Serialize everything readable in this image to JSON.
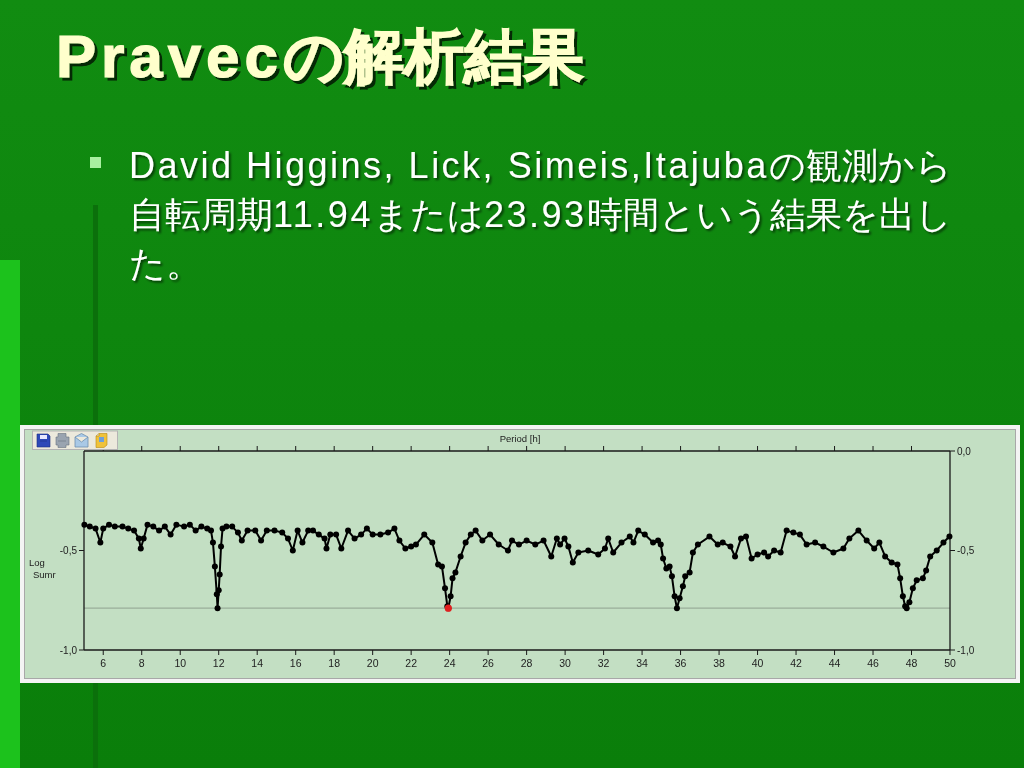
{
  "chart_data": {
    "type": "line",
    "title": "Pravecの解析結果",
    "subtitle": "David Higgins, Lick, Simeis,Itajubaの観測から自転周期11.94または23.93時間という結果を出した。",
    "ylabel": "Log Sumr",
    "xlabel": "Period [h]",
    "xlim": [
      5,
      50
    ],
    "xticks": [
      6,
      8,
      10,
      12,
      14,
      16,
      18,
      20,
      22,
      24,
      26,
      28,
      30,
      32,
      34,
      36,
      38,
      40,
      42,
      44,
      46,
      48,
      50
    ],
    "ylim": [
      -1,
      0
    ],
    "yticks": [
      {
        "value": -1,
        "label": "-1,0"
      },
      {
        "value": -0.5,
        "label": "-0,5"
      }
    ],
    "y2lim": [
      -1,
      0
    ],
    "y2ticks": [
      {
        "value": 0,
        "label": "0,0"
      },
      {
        "value": -0.5,
        "label": "-0,5"
      },
      {
        "value": -1,
        "label": "-1,0"
      }
    ],
    "marker": "circle",
    "ref_lines": [
      {
        "axis": "y",
        "value": -0.79,
        "color": "#9aae9a"
      }
    ],
    "series": [
      {
        "color": "#000000",
        "x": [
          5.02,
          5.3,
          5.6,
          5.85,
          6.0,
          6.3,
          6.6,
          7.0,
          7.3,
          7.6,
          7.85,
          7.95,
          8.1,
          8.3,
          8.6,
          8.9,
          9.2,
          9.5,
          9.8,
          10.2,
          10.5,
          10.8,
          11.1,
          11.4,
          11.6,
          11.7,
          11.8,
          11.9,
          11.94,
          12.0,
          12.05,
          12.12,
          12.2,
          12.4,
          12.7,
          13.0,
          13.2,
          13.5,
          13.9,
          14.2,
          14.5,
          14.9,
          15.3,
          15.6,
          15.85,
          16.1,
          16.35,
          16.65,
          16.9,
          17.2,
          17.5,
          17.6,
          17.8,
          18.1,
          18.37,
          18.72,
          19.06,
          19.4,
          19.7,
          20.0,
          20.4,
          20.8,
          21.13,
          21.39,
          21.7,
          22.0,
          22.25,
          22.68,
          23.1,
          23.4,
          23.6,
          23.76,
          23.88,
          23.93,
          24.05,
          24.15,
          24.3,
          24.57,
          24.83,
          25.1,
          25.35,
          25.7,
          26.1,
          26.55,
          27.03,
          27.24,
          27.6,
          28.0,
          28.45,
          28.88,
          29.28,
          29.57,
          29.74,
          29.97,
          30.17,
          30.4,
          30.69,
          31.2,
          31.72,
          32.07,
          32.24,
          32.5,
          32.93,
          33.36,
          33.55,
          33.8,
          34.14,
          34.57,
          34.83,
          34.97,
          35.09,
          35.26,
          35.43,
          35.55,
          35.69,
          35.81,
          35.95,
          36.12,
          36.24,
          36.47,
          36.64,
          36.9,
          37.5,
          37.93,
          38.19,
          38.59,
          38.83,
          39.14,
          39.4,
          39.69,
          40.0,
          40.34,
          40.55,
          40.86,
          41.2,
          41.51,
          41.86,
          42.2,
          42.55,
          42.99,
          43.42,
          43.94,
          44.46,
          44.77,
          45.24,
          45.67,
          46.06,
          46.33,
          46.63,
          46.97,
          47.27,
          47.41,
          47.55,
          47.67,
          47.75,
          47.89,
          48.07,
          48.27,
          48.59,
          48.76,
          48.97,
          49.31,
          49.66,
          49.97
        ],
        "values": [
          -0.37,
          -0.38,
          -0.39,
          -0.46,
          -0.39,
          -0.37,
          -0.38,
          -0.38,
          -0.39,
          -0.4,
          -0.44,
          -0.49,
          -0.44,
          -0.37,
          -0.38,
          -0.4,
          -0.38,
          -0.42,
          -0.37,
          -0.38,
          -0.37,
          -0.4,
          -0.38,
          -0.39,
          -0.4,
          -0.46,
          -0.58,
          -0.72,
          -0.79,
          -0.7,
          -0.62,
          -0.48,
          -0.39,
          -0.38,
          -0.38,
          -0.41,
          -0.45,
          -0.4,
          -0.4,
          -0.45,
          -0.4,
          -0.4,
          -0.41,
          -0.44,
          -0.5,
          -0.4,
          -0.46,
          -0.4,
          -0.4,
          -0.42,
          -0.44,
          -0.49,
          -0.42,
          -0.42,
          -0.49,
          -0.4,
          -0.44,
          -0.42,
          -0.39,
          -0.42,
          -0.42,
          -0.41,
          -0.39,
          -0.45,
          -0.49,
          -0.48,
          -0.47,
          -0.42,
          -0.46,
          -0.57,
          -0.58,
          -0.69,
          -0.78,
          -0.79,
          -0.73,
          -0.64,
          -0.61,
          -0.53,
          -0.46,
          -0.42,
          -0.4,
          -0.45,
          -0.42,
          -0.47,
          -0.5,
          -0.45,
          -0.47,
          -0.45,
          -0.47,
          -0.45,
          -0.53,
          -0.44,
          -0.47,
          -0.44,
          -0.48,
          -0.56,
          -0.51,
          -0.5,
          -0.52,
          -0.49,
          -0.44,
          -0.51,
          -0.46,
          -0.43,
          -0.46,
          -0.4,
          -0.42,
          -0.46,
          -0.45,
          -0.47,
          -0.54,
          -0.59,
          -0.58,
          -0.63,
          -0.73,
          -0.79,
          -0.74,
          -0.68,
          -0.63,
          -0.61,
          -0.51,
          -0.47,
          -0.43,
          -0.47,
          -0.46,
          -0.48,
          -0.53,
          -0.44,
          -0.43,
          -0.54,
          -0.52,
          -0.51,
          -0.53,
          -0.5,
          -0.51,
          -0.4,
          -0.41,
          -0.42,
          -0.47,
          -0.46,
          -0.48,
          -0.51,
          -0.49,
          -0.44,
          -0.4,
          -0.45,
          -0.49,
          -0.46,
          -0.53,
          -0.56,
          -0.57,
          -0.64,
          -0.73,
          -0.78,
          -0.79,
          -0.76,
          -0.69,
          -0.65,
          -0.64,
          -0.6,
          -0.53,
          -0.5,
          -0.46,
          -0.43
        ]
      },
      {
        "type": "scatter",
        "color": "#e02020",
        "x": [
          23.93
        ],
        "values": [
          -0.79
        ]
      }
    ]
  }
}
